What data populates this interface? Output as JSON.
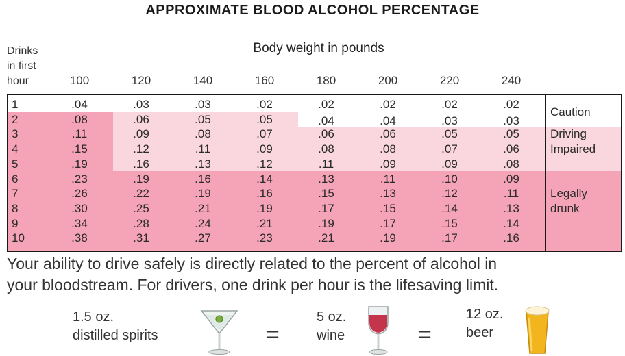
{
  "title": "APPROXIMATE BLOOD ALCOHOL PERCENTAGE",
  "drinks_header": [
    "Drinks",
    "in first",
    "hour"
  ],
  "weight_header": "Body weight in pounds",
  "weights": [
    "100",
    "120",
    "140",
    "160",
    "180",
    "200",
    "220",
    "240"
  ],
  "rows": [
    {
      "drinks": "1",
      "values": [
        ".04",
        ".03",
        ".03",
        ".02",
        ".02",
        ".02",
        ".02",
        ".02"
      ]
    },
    {
      "drinks": "2",
      "values": [
        ".08",
        ".06",
        ".05",
        ".05",
        ".04",
        ".04",
        ".03",
        ".03"
      ]
    },
    {
      "drinks": "3",
      "values": [
        ".11",
        ".09",
        ".08",
        ".07",
        ".06",
        ".06",
        ".05",
        ".05"
      ]
    },
    {
      "drinks": "4",
      "values": [
        ".15",
        ".12",
        ".11",
        ".09",
        ".08",
        ".08",
        ".07",
        ".06"
      ]
    },
    {
      "drinks": "5",
      "values": [
        ".19",
        ".16",
        ".13",
        ".12",
        ".11",
        ".09",
        ".09",
        ".08"
      ]
    },
    {
      "drinks": "6",
      "values": [
        ".23",
        ".19",
        ".16",
        ".14",
        ".13",
        ".11",
        ".10",
        ".09"
      ]
    },
    {
      "drinks": "7",
      "values": [
        ".26",
        ".22",
        ".19",
        ".16",
        ".15",
        ".13",
        ".12",
        ".11"
      ]
    },
    {
      "drinks": "8",
      "values": [
        ".30",
        ".25",
        ".21",
        ".19",
        ".17",
        ".15",
        ".14",
        ".13"
      ]
    },
    {
      "drinks": "9",
      "values": [
        ".34",
        ".28",
        ".24",
        ".21",
        ".19",
        ".17",
        ".15",
        ".14"
      ]
    },
    {
      "drinks": "10",
      "values": [
        ".38",
        ".31",
        ".27",
        ".23",
        ".21",
        ".19",
        ".17",
        ".16"
      ]
    }
  ],
  "zones": {
    "caution": "Caution",
    "impaired": [
      "Driving",
      "Impaired"
    ],
    "drunk": [
      "Legally",
      "drunk"
    ]
  },
  "zone_colors": {
    "caution": "#ffffff",
    "impaired": "#fad7df",
    "drunk": "#f5a3b6"
  },
  "note": [
    "Your ability to drive safely is directly related to the percent of alcohol in",
    "your bloodstream.  For drivers, one drink per hour is the lifesaving limit."
  ],
  "equivalents": [
    {
      "amount": "1.5 oz.",
      "drink": "distilled spirits",
      "icon": "martini-glass-icon"
    },
    {
      "amount": "5 oz.",
      "drink": "wine",
      "icon": "wine-glass-icon"
    },
    {
      "amount": "12 oz.",
      "drink": "beer",
      "icon": "beer-glass-icon"
    }
  ],
  "equals": "="
}
